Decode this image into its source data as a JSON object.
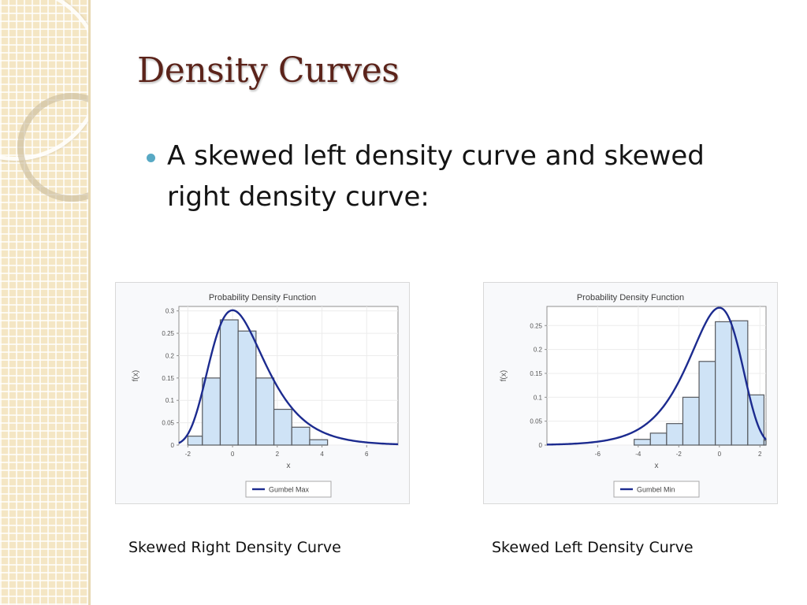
{
  "slide": {
    "title": "Density Curves",
    "bullet": "A skewed left density curve and skewed right density curve:",
    "captions": {
      "left": "Skewed Right Density Curve",
      "right": "Skewed Left Density Curve"
    }
  },
  "colors": {
    "title": "#5b231a",
    "bullet": "#58a9c4",
    "bars_fill": "#cfe3f6",
    "bars_stroke": "#56595e",
    "curve": "#1c2b8f",
    "sidebar": "#f4e6c4"
  },
  "chart_data": [
    {
      "type": "bar",
      "title": "Probability Density Function",
      "xlabel": "x",
      "ylabel": "f(x)",
      "xlim": [
        -2.4,
        7.4
      ],
      "ylim": [
        0,
        0.31
      ],
      "xticks": [
        "-2",
        "0",
        "2",
        "4",
        "6"
      ],
      "yticks": [
        "0",
        "0.05",
        "0.1",
        "0.15",
        "0.2",
        "0.25",
        "0.3"
      ],
      "grid": true,
      "legend_position": "bottom-center",
      "bins": [
        {
          "x0": -2,
          "x1": -1.35,
          "value": 0.02
        },
        {
          "x0": -1.35,
          "x1": -0.55,
          "value": 0.15
        },
        {
          "x0": -0.55,
          "x1": 0.25,
          "value": 0.28
        },
        {
          "x0": 0.25,
          "x1": 1.05,
          "value": 0.255
        },
        {
          "x0": 1.05,
          "x1": 1.85,
          "value": 0.15
        },
        {
          "x0": 1.85,
          "x1": 2.65,
          "value": 0.08
        },
        {
          "x0": 2.65,
          "x1": 3.45,
          "value": 0.04
        },
        {
          "x0": 3.45,
          "x1": 4.25,
          "value": 0.012
        }
      ],
      "series": [
        {
          "name": "Gumbel Max",
          "distribution": "gumbel-max",
          "location": 0,
          "scale": 1.22,
          "x_range": [
            -2.4,
            7.4
          ]
        }
      ]
    },
    {
      "type": "bar",
      "title": "Probability Density Function",
      "xlabel": "x",
      "ylabel": "f(x)",
      "xlim": [
        -8.5,
        2.3
      ],
      "ylim": [
        0,
        0.29
      ],
      "xticks": [
        "-6",
        "-4",
        "-2",
        "0",
        "2"
      ],
      "yticks": [
        "0",
        "0.05",
        "0.1",
        "0.15",
        "0.2",
        "0.25"
      ],
      "grid": true,
      "legend_position": "bottom-center",
      "bins": [
        {
          "x0": -4.2,
          "x1": -3.4,
          "value": 0.012
        },
        {
          "x0": -3.4,
          "x1": -2.6,
          "value": 0.025
        },
        {
          "x0": -2.6,
          "x1": -1.8,
          "value": 0.045
        },
        {
          "x0": -1.8,
          "x1": -1.0,
          "value": 0.1
        },
        {
          "x0": -1.0,
          "x1": -0.2,
          "value": 0.175
        },
        {
          "x0": -0.2,
          "x1": 0.6,
          "value": 0.258
        },
        {
          "x0": 0.6,
          "x1": 1.4,
          "value": 0.26
        },
        {
          "x0": 1.4,
          "x1": 2.2,
          "value": 0.105
        },
        {
          "x0": 2.2,
          "x1": 2.3,
          "value": 0.01
        }
      ],
      "series": [
        {
          "name": "Gumbel Min",
          "distribution": "gumbel-min",
          "location": 0,
          "scale": 1.28,
          "x_range": [
            -8.5,
            2.3
          ]
        }
      ]
    }
  ]
}
